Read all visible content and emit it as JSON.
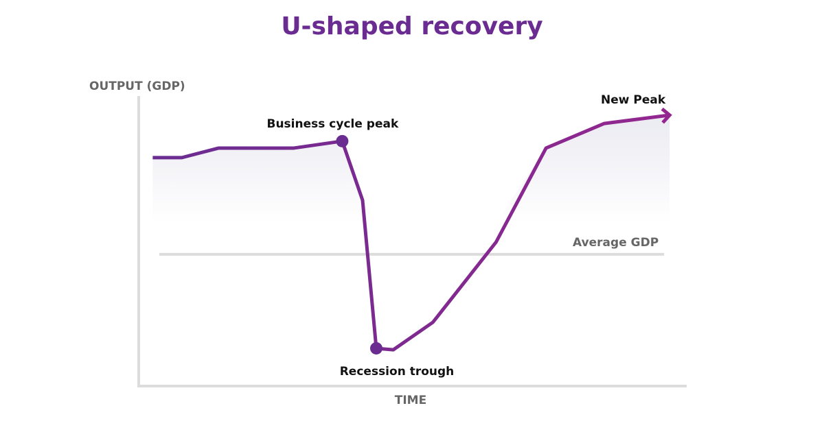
{
  "chart_data": {
    "type": "line",
    "title": "U-shaped recovery",
    "xlabel": "TIME",
    "ylabel": "OUTPUT (GDP)",
    "xlim": [
      0,
      100
    ],
    "ylim": [
      0,
      100
    ],
    "grid": false,
    "series": [
      {
        "name": "GDP",
        "x": [
          2.8,
          8.1,
          14.8,
          28.5,
          37.3,
          41.0,
          43.5,
          46.6,
          53.8,
          65.3,
          74.4,
          85.0,
          96.9
        ],
        "y": [
          78.7,
          78.7,
          82.0,
          82.0,
          84.4,
          64.0,
          12.8,
          12.3,
          21.8,
          49.5,
          82.0,
          90.5,
          93.4
        ]
      }
    ],
    "reference_line": {
      "label": "Average GDP",
      "y": 45.3,
      "x": [
        4,
        95.9
      ]
    },
    "annotations": [
      {
        "text": "Business cycle peak",
        "x": 37.3,
        "y": 84.4,
        "marker": true
      },
      {
        "text": "Recession trough",
        "x": 43.5,
        "y": 12.8,
        "marker": true
      },
      {
        "text": "New Peak",
        "x": 96.9,
        "y": 93.4,
        "marker": false
      }
    ],
    "colors": {
      "title": "#6a2c91",
      "line_start": "#6a2c91",
      "line_end": "#93278f",
      "axis": "#dcdcdc",
      "axis_label": "#666666",
      "fill": "#e8e8f0"
    }
  }
}
